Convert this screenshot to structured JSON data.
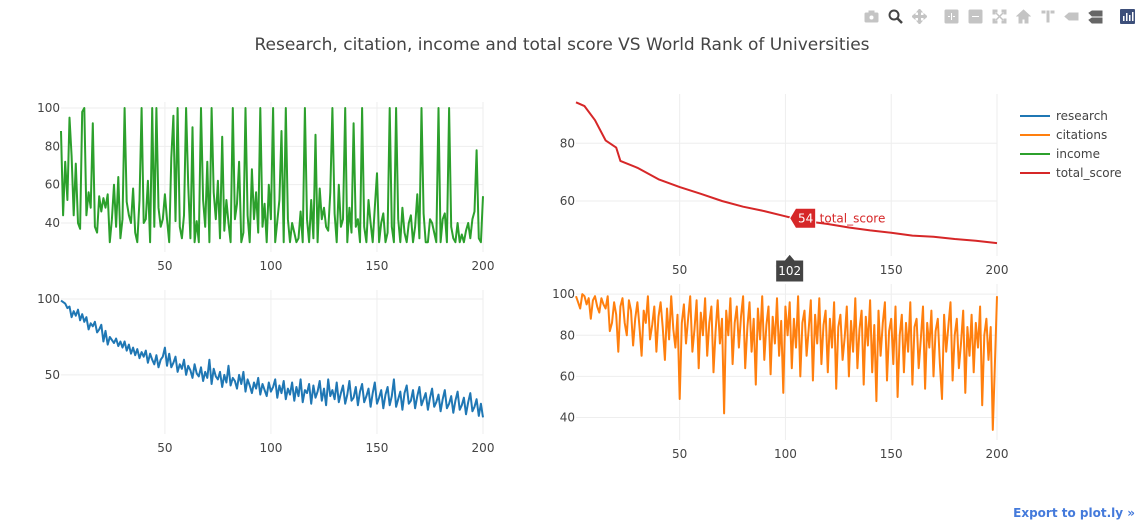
{
  "page": {
    "title": "Research, citation, income and total score VS World Rank of Universities",
    "export_label": "Export to plot.ly »"
  },
  "modebar": {
    "icons": [
      "camera-icon",
      "zoom-icon",
      "pan-icon",
      "zoom-in-icon",
      "zoom-out-icon",
      "autoscale-icon",
      "reset-axes-icon",
      "spike-lines-icon",
      "hover-closest-icon",
      "hover-compare-icon",
      "plotly-logo-icon"
    ],
    "color": "#c4c4c4",
    "active_color": "#444444"
  },
  "legend": [
    {
      "name": "research",
      "color": "#1f77b4"
    },
    {
      "name": "citations",
      "color": "#ff7f0e"
    },
    {
      "name": "income",
      "color": "#2ca02c"
    },
    {
      "name": "total_score",
      "color": "#d62728"
    }
  ],
  "hover": {
    "value_label": "54",
    "trace_label": "total_score",
    "x_label": "102",
    "x": 102
  },
  "chart_data": [
    {
      "type": "line",
      "id": "income",
      "series": [
        {
          "name": "income",
          "color": "#2ca02c"
        }
      ],
      "xlim": [
        1,
        200
      ],
      "ylim": [
        28,
        100
      ],
      "xticks": [
        50,
        100,
        150,
        200
      ],
      "yticks": [
        40,
        60,
        80,
        100
      ],
      "grid": true,
      "y": [
        88,
        44,
        72,
        52,
        95,
        75,
        44,
        71,
        40,
        37,
        98,
        100,
        44,
        56,
        48,
        92,
        38,
        35,
        54,
        46,
        53,
        48,
        55,
        30,
        42,
        60,
        38,
        64,
        32,
        42,
        100,
        51,
        44,
        40,
        58,
        35,
        30,
        52,
        100,
        40,
        42,
        62,
        30,
        100,
        38,
        100,
        48,
        38,
        42,
        55,
        42,
        30,
        74,
        96,
        41,
        100,
        38,
        32,
        44,
        100,
        60,
        32,
        90,
        30,
        41,
        30,
        100,
        52,
        38,
        72,
        30,
        100,
        56,
        42,
        62,
        32,
        85,
        36,
        52,
        40,
        30,
        100,
        42,
        50,
        72,
        30,
        35,
        100,
        44,
        30,
        68,
        42,
        56,
        35,
        100,
        38,
        50,
        30,
        60,
        42,
        100,
        30,
        41,
        52,
        88,
        30,
        100,
        42,
        30,
        40,
        35,
        30,
        32,
        46,
        30,
        100,
        42,
        30,
        52,
        32,
        86,
        30,
        58,
        42,
        48,
        38,
        36,
        56,
        100,
        45,
        30,
        60,
        38,
        42,
        100,
        30,
        48,
        35,
        92,
        38,
        42,
        30,
        100,
        38,
        30,
        52,
        40,
        30,
        48,
        66,
        30,
        40,
        45,
        30,
        35,
        100,
        38,
        30,
        100,
        42,
        30,
        48,
        35,
        30,
        40,
        44,
        30,
        38,
        55,
        32,
        100,
        45,
        30,
        30,
        42,
        40,
        35,
        30,
        100,
        30,
        42,
        45,
        30,
        100,
        38,
        32,
        30,
        40,
        30,
        34,
        30,
        36,
        40,
        32,
        42,
        46,
        78,
        32,
        30,
        54
      ]
    },
    {
      "type": "line",
      "id": "total_score",
      "series": [
        {
          "name": "total_score",
          "color": "#d62728"
        }
      ],
      "xlim": [
        1,
        200
      ],
      "ylim": [
        43,
        95
      ],
      "xticks": [
        50,
        100,
        150,
        200
      ],
      "yticks": [
        60,
        80
      ],
      "grid": true,
      "points": [
        [
          1,
          94.2
        ],
        [
          5,
          92.9
        ],
        [
          10,
          88
        ],
        [
          15,
          81
        ],
        [
          20,
          78.5
        ],
        [
          22,
          73.9
        ],
        [
          30,
          71.5
        ],
        [
          40,
          67.5
        ],
        [
          50,
          64.8
        ],
        [
          60,
          62.5
        ],
        [
          70,
          60
        ],
        [
          80,
          58
        ],
        [
          90,
          56.5
        ],
        [
          100,
          54.7
        ],
        [
          102,
          54.3
        ],
        [
          110,
          53
        ],
        [
          120,
          52
        ],
        [
          130,
          50.8
        ],
        [
          140,
          49.8
        ],
        [
          150,
          49
        ],
        [
          160,
          48
        ],
        [
          170,
          47.6
        ],
        [
          180,
          46.8
        ],
        [
          190,
          46.2
        ],
        [
          200,
          45.4
        ]
      ]
    },
    {
      "type": "line",
      "id": "research",
      "series": [
        {
          "name": "research",
          "color": "#1f77b4"
        }
      ],
      "xlim": [
        1,
        200
      ],
      "ylim": [
        15,
        102
      ],
      "xticks": [
        50,
        100,
        150,
        200
      ],
      "yticks": [
        50,
        100
      ],
      "grid": true,
      "y": [
        99,
        98,
        97,
        94,
        95,
        88,
        92,
        89,
        93,
        86,
        90,
        85,
        88,
        80,
        84,
        82,
        85,
        78,
        80,
        83,
        72,
        79,
        70,
        75,
        73,
        71,
        74,
        69,
        72,
        68,
        72,
        66,
        70,
        64,
        68,
        63,
        67,
        61,
        65,
        62,
        66,
        58,
        64,
        60,
        57,
        63,
        55,
        60,
        62,
        68,
        56,
        64,
        55,
        58,
        62,
        52,
        57,
        54,
        60,
        50,
        56,
        53,
        48,
        57,
        51,
        49,
        55,
        46,
        52,
        48,
        60,
        44,
        54,
        49,
        47,
        52,
        42,
        50,
        45,
        56,
        43,
        48,
        46,
        41,
        50,
        44,
        52,
        39,
        47,
        43,
        38,
        45,
        41,
        48,
        37,
        44,
        40,
        36,
        45,
        39,
        42,
        47,
        35,
        43,
        38,
        46,
        34,
        41,
        37,
        45,
        33,
        42,
        36,
        47,
        32,
        40,
        38,
        44,
        31,
        43,
        35,
        39,
        46,
        33,
        41,
        30,
        47,
        36,
        40,
        34,
        45,
        32,
        38,
        43,
        31,
        37,
        46,
        33,
        35,
        42,
        30,
        39,
        44,
        32,
        36,
        41,
        29,
        38,
        45,
        31,
        35,
        40,
        28,
        37,
        42,
        30,
        36,
        47,
        29,
        34,
        39,
        27,
        38,
        43,
        31,
        33,
        40,
        28,
        36,
        42,
        30,
        34,
        38,
        27,
        35,
        41,
        29,
        32,
        37,
        26,
        34,
        40,
        28,
        31,
        36,
        25,
        33,
        39,
        27,
        30,
        35,
        24,
        32,
        38,
        26,
        29,
        34,
        23,
        31,
        22
      ]
    },
    {
      "type": "line",
      "id": "citations",
      "series": [
        {
          "name": "citations",
          "color": "#ff7f0e"
        }
      ],
      "xlim": [
        1,
        200
      ],
      "ylim": [
        32,
        102
      ],
      "xticks": [
        50,
        100,
        150,
        200
      ],
      "yticks": [
        40,
        60,
        80,
        100
      ],
      "grid": true,
      "y": [
        99,
        96,
        93,
        100,
        99,
        95,
        98,
        88,
        97,
        99,
        94,
        91,
        98,
        95,
        93,
        99,
        82,
        86,
        96,
        90,
        72,
        94,
        98,
        86,
        80,
        97,
        92,
        75,
        88,
        96,
        84,
        70,
        92,
        86,
        99,
        78,
        85,
        94,
        72,
        89,
        96,
        84,
        68,
        93,
        78,
        99,
        83,
        74,
        90,
        49,
        86,
        95,
        76,
        88,
        99,
        72,
        83,
        97,
        64,
        91,
        80,
        98,
        70,
        86,
        94,
        62,
        82,
        97,
        76,
        88,
        42,
        92,
        80,
        98,
        66,
        86,
        94,
        74,
        89,
        99,
        64,
        84,
        96,
        72,
        88,
        56,
        93,
        78,
        99,
        68,
        85,
        94,
        61,
        89,
        76,
        98,
        70,
        87,
        52,
        94,
        80,
        96,
        64,
        88,
        74,
        99,
        60,
        86,
        92,
        70,
        83,
        97,
        58,
        90,
        76,
        98,
        66,
        85,
        92,
        62,
        88,
        74,
        96,
        54,
        84,
        90,
        68,
        79,
        94,
        60,
        87,
        72,
        98,
        64,
        83,
        92,
        56,
        89,
        75,
        97,
        62,
        85,
        48,
        92,
        70,
        86,
        96,
        58,
        82,
        88,
        66,
        94,
        50,
        80,
        90,
        62,
        86,
        72,
        96,
        56,
        84,
        88,
        64,
        78,
        94,
        54,
        86,
        74,
        92,
        60,
        82,
        88,
        66,
        49,
        90,
        72,
        84,
        96,
        58,
        80,
        88,
        64,
        76,
        92,
        52,
        84,
        70,
        90,
        62,
        86,
        74,
        94,
        46,
        80,
        88,
        68,
        84,
        34,
        66,
        99
      ]
    }
  ]
}
